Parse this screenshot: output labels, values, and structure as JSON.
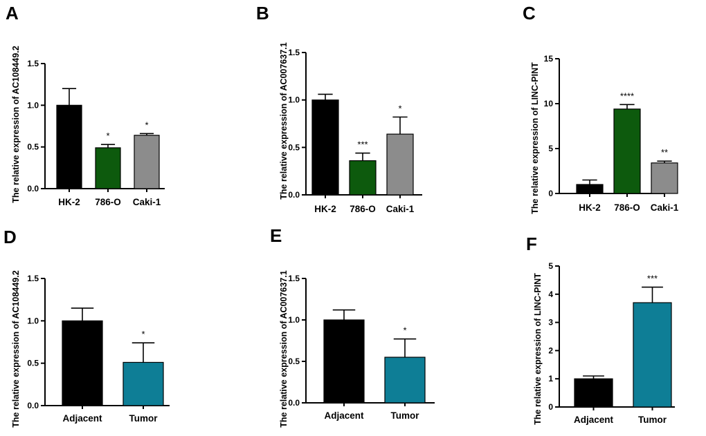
{
  "colors": {
    "black": "#000000",
    "green": "#0d5a0d",
    "gray": "#8c8c8c",
    "teal": "#0e7e96"
  },
  "chart_data": [
    {
      "id": "A",
      "panel_label": "A",
      "type": "bar",
      "ylabel": "The relative expression  of  AC108449.2",
      "ylim": [
        0,
        1.5
      ],
      "yticks": [
        0.0,
        0.5,
        1.0,
        1.5
      ],
      "ytick_labels": [
        "0.0",
        "0.5",
        "1.0",
        "1.5"
      ],
      "categories": [
        "HK-2",
        "786-O",
        "Caki-1"
      ],
      "values": [
        1.0,
        0.49,
        0.64
      ],
      "errors": [
        0.2,
        0.04,
        0.02
      ],
      "significance": [
        "",
        "*",
        "*"
      ],
      "bar_colors": [
        "#000000",
        "#0d5a0d",
        "#8c8c8c"
      ]
    },
    {
      "id": "B",
      "panel_label": "B",
      "type": "bar",
      "ylabel": "The relative expression  of  AC007637.1",
      "ylim": [
        0,
        1.5
      ],
      "yticks": [
        0.0,
        0.5,
        1.0,
        1.5
      ],
      "ytick_labels": [
        "0.0",
        "0.5",
        "1.0",
        "1.5"
      ],
      "categories": [
        "HK-2",
        "786-O",
        "Caki-1"
      ],
      "values": [
        1.0,
        0.36,
        0.64
      ],
      "errors": [
        0.06,
        0.08,
        0.18
      ],
      "significance": [
        "",
        "***",
        "*"
      ],
      "bar_colors": [
        "#000000",
        "#0d5a0d",
        "#8c8c8c"
      ]
    },
    {
      "id": "C",
      "panel_label": "C",
      "type": "bar",
      "ylabel": "The relative expression  of  LINC-PINT",
      "ylim": [
        0,
        15
      ],
      "yticks": [
        0,
        5,
        10,
        15
      ],
      "ytick_labels": [
        "0",
        "5",
        "10",
        "15"
      ],
      "categories": [
        "HK-2",
        "786-O",
        "Caki-1"
      ],
      "values": [
        1.0,
        9.4,
        3.4
      ],
      "errors": [
        0.5,
        0.5,
        0.2
      ],
      "significance": [
        "",
        "****",
        "**"
      ],
      "bar_colors": [
        "#000000",
        "#0d5a0d",
        "#8c8c8c"
      ]
    },
    {
      "id": "D",
      "panel_label": "D",
      "type": "bar",
      "ylabel": "The relative expression  of  AC108449.2",
      "ylim": [
        0,
        1.5
      ],
      "yticks": [
        0.0,
        0.5,
        1.0,
        1.5
      ],
      "ytick_labels": [
        "0.0",
        "0.5",
        "1.0",
        "1.5"
      ],
      "categories": [
        "Adjacent",
        "Tumor"
      ],
      "values": [
        1.0,
        0.51
      ],
      "errors": [
        0.15,
        0.23
      ],
      "significance": [
        "",
        "*"
      ],
      "bar_colors": [
        "#000000",
        "#0e7e96"
      ]
    },
    {
      "id": "E",
      "panel_label": "E",
      "type": "bar",
      "ylabel": "The relative expression  of  AC007637.1",
      "ylim": [
        0,
        1.5
      ],
      "yticks": [
        0.0,
        0.5,
        1.0,
        1.5
      ],
      "ytick_labels": [
        "0.0",
        "0.5",
        "1.0",
        "1.5"
      ],
      "categories": [
        "Adjacent",
        "Tumor"
      ],
      "values": [
        1.0,
        0.55
      ],
      "errors": [
        0.12,
        0.22
      ],
      "significance": [
        "",
        "*"
      ],
      "bar_colors": [
        "#000000",
        "#0e7e96"
      ]
    },
    {
      "id": "F",
      "panel_label": "F",
      "type": "bar",
      "ylabel": "The relative expression  of  LINC-PINT",
      "ylim": [
        0,
        5
      ],
      "yticks": [
        0,
        1,
        2,
        3,
        4,
        5
      ],
      "ytick_labels": [
        "0",
        "1",
        "2",
        "3",
        "4",
        "5"
      ],
      "categories": [
        "Adjacent",
        "Tumor"
      ],
      "values": [
        1.0,
        3.7
      ],
      "errors": [
        0.1,
        0.55
      ],
      "significance": [
        "",
        "***"
      ],
      "bar_colors": [
        "#000000",
        "#0e7e96"
      ]
    }
  ]
}
